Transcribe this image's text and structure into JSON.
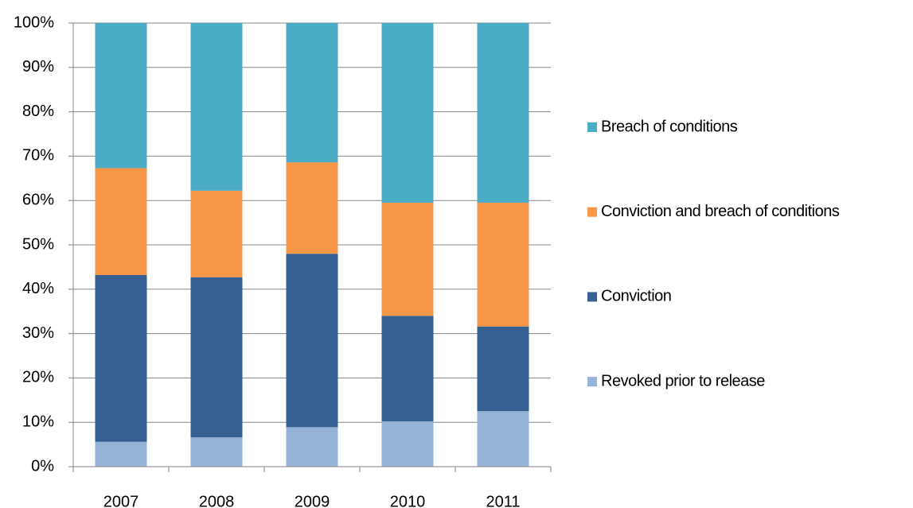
{
  "chart_data": {
    "type": "stacked_bar",
    "categories": [
      "2007",
      "2008",
      "2009",
      "2010",
      "2011"
    ],
    "series": [
      {
        "name": "Revoked prior to release",
        "color": "#95b3d7",
        "values": [
          5.6,
          6.6,
          8.9,
          10.2,
          12.5
        ]
      },
      {
        "name": "Conviction",
        "color": "#366092",
        "values": [
          37.6,
          36.1,
          39.1,
          23.8,
          19.1
        ]
      },
      {
        "name": "Conviction and breach of conditions",
        "color": "#f79646",
        "values": [
          24.1,
          19.5,
          20.6,
          25.5,
          27.9
        ]
      },
      {
        "name": "Breach of conditions",
        "color": "#4bacc6",
        "values": [
          32.7,
          37.8,
          31.4,
          40.5,
          40.5
        ]
      }
    ],
    "ylim": [
      0,
      100
    ],
    "yticks": [
      {
        "value": 0,
        "label": "0%"
      },
      {
        "value": 10,
        "label": "10%"
      },
      {
        "value": 20,
        "label": "20%"
      },
      {
        "value": 30,
        "label": "30%"
      },
      {
        "value": 40,
        "label": "40%"
      },
      {
        "value": 50,
        "label": "50%"
      },
      {
        "value": 60,
        "label": "60%"
      },
      {
        "value": 70,
        "label": "70%"
      },
      {
        "value": 80,
        "label": "80%"
      },
      {
        "value": 90,
        "label": "90%"
      },
      {
        "value": 100,
        "label": "100%"
      }
    ],
    "grid": true,
    "legend": "right"
  }
}
